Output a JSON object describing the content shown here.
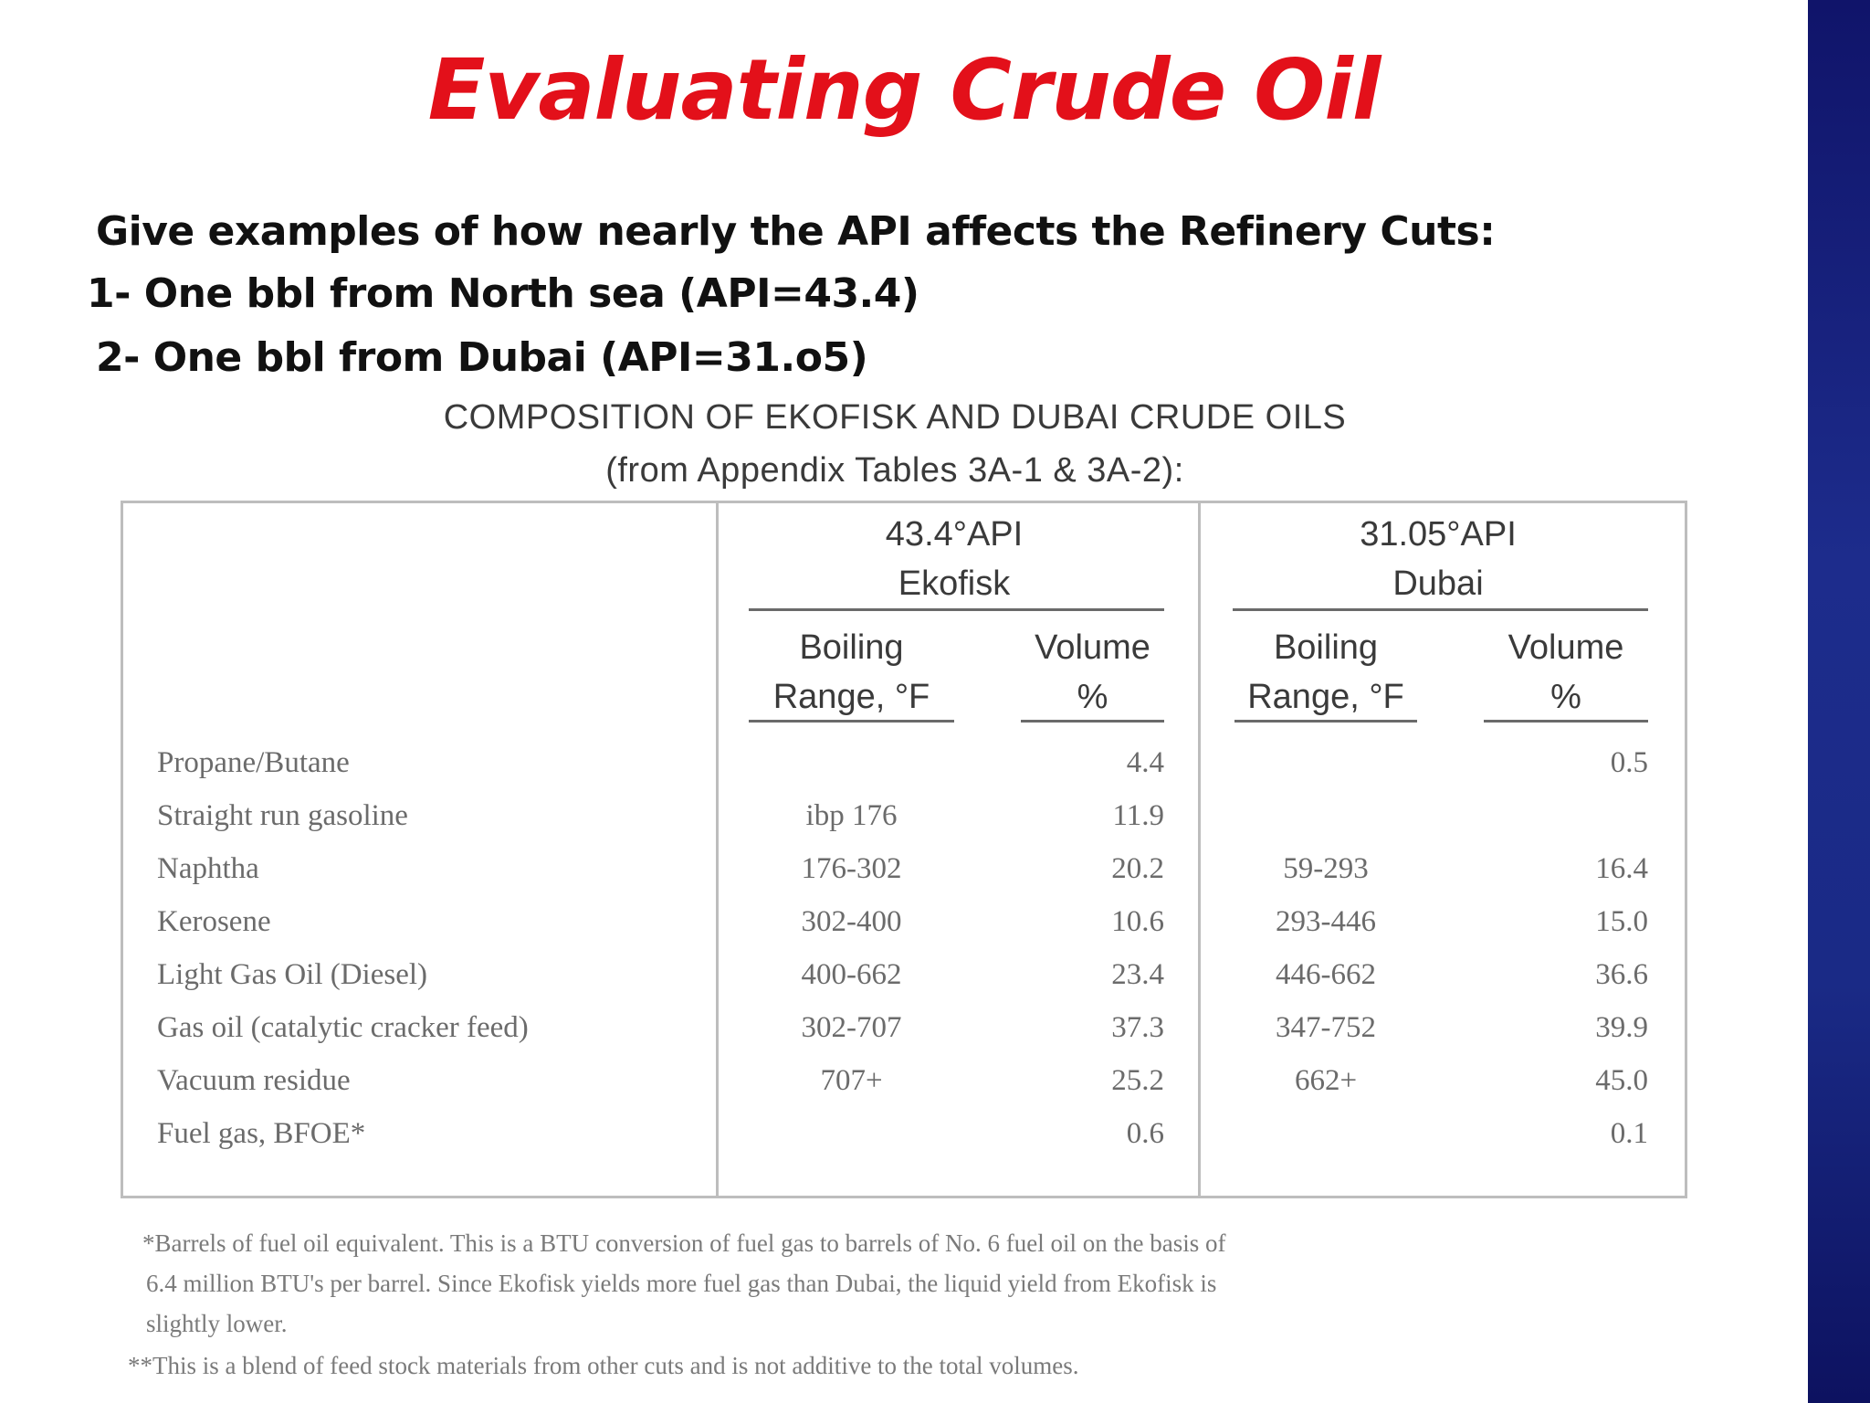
{
  "slide": {
    "title": "Evaluating Crude Oil",
    "intro": {
      "question": "Give examples of how nearly the API affects the Refinery Cuts:",
      "item1": "1- One bbl from North sea (API=43.4)",
      "item2": "2- One bbl from Dubai (API=31.o5)"
    },
    "caption": {
      "line1": "COMPOSITION OF EKOFISK AND DUBAI CRUDE OILS",
      "line2": "(from Appendix Tables 3A-1 & 3A-2):"
    },
    "table": {
      "ekofisk": {
        "api": "43.4°API",
        "name": "Ekofisk"
      },
      "dubai": {
        "api": "31.05°API",
        "name": "Dubai"
      },
      "sub_boiling_line1": "Boiling",
      "sub_boiling_line2": "Range, °F",
      "sub_volume_line1": "Volume",
      "sub_volume_line2": "%",
      "rows": [
        {
          "label": "Propane/Butane",
          "eko_boiling": "",
          "eko_volume": "4.4",
          "dub_boiling": "",
          "dub_volume": "0.5"
        },
        {
          "label": "Straight run gasoline",
          "eko_boiling": "ibp 176",
          "eko_volume": "11.9",
          "dub_boiling": "",
          "dub_volume": ""
        },
        {
          "label": "Naphtha",
          "eko_boiling": "176-302",
          "eko_volume": "20.2",
          "dub_boiling": "59-293",
          "dub_volume": "16.4"
        },
        {
          "label": "Kerosene",
          "eko_boiling": "302-400",
          "eko_volume": "10.6",
          "dub_boiling": "293-446",
          "dub_volume": "15.0"
        },
        {
          "label": "Light Gas Oil (Diesel)",
          "eko_boiling": "400-662",
          "eko_volume": "23.4",
          "dub_boiling": "446-662",
          "dub_volume": "36.6"
        },
        {
          "label": "Gas oil (catalytic cracker feed)",
          "eko_boiling": "302-707",
          "eko_volume": "37.3",
          "dub_boiling": "347-752",
          "dub_volume": "39.9"
        },
        {
          "label": "Vacuum residue",
          "eko_boiling": "707+",
          "eko_volume": "25.2",
          "dub_boiling": "662+",
          "dub_volume": "45.0"
        },
        {
          "label": "Fuel gas, BFOE*",
          "eko_boiling": "",
          "eko_volume": "0.6",
          "dub_boiling": "",
          "dub_volume": "0.1"
        }
      ]
    },
    "footnotes": {
      "note1_line1": "*Barrels of fuel oil equivalent. This is a BTU conversion of fuel gas to barrels of No. 6 fuel oil on the basis of",
      "note1_line2": "6.4 million BTU's per barrel. Since Ekofisk yields more fuel gas than Dubai, the liquid yield from Ekofisk is",
      "note1_line3": "slightly lower.",
      "note2": "**This is a blend of feed stock materials from other cuts and is not additive to the total volumes."
    }
  }
}
